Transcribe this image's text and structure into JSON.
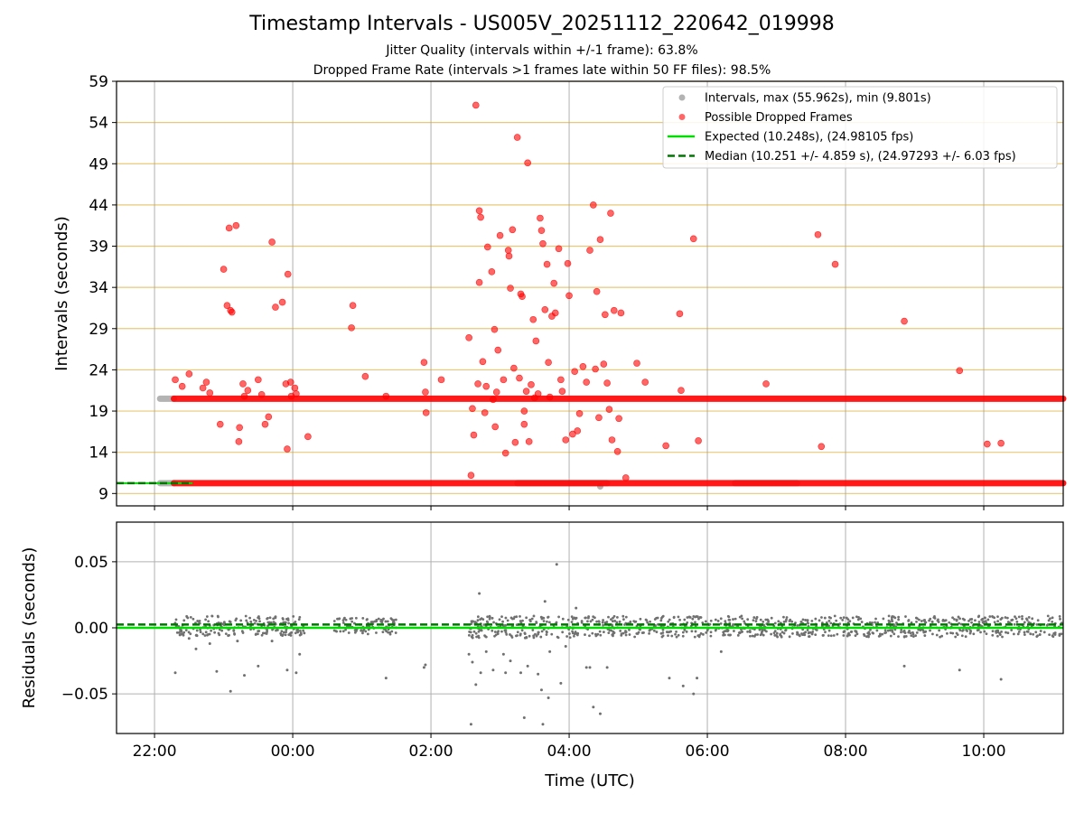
{
  "titles": {
    "title": "Timestamp Intervals - US005V_20251112_220642_019998",
    "subtitle1": "Jitter Quality (intervals within +/-1 frame): 63.8%",
    "subtitle2": "Dropped Frame Rate (intervals >1 frames late within 50 FF files): 98.5%"
  },
  "chart_data": [
    {
      "type": "scatter",
      "panel": "intervals",
      "ylabel": "Intervals (seconds)",
      "xlabel": "",
      "x_unit": "hours relative to 00:00 UTC",
      "xlim": [
        -2.55,
        11.15
      ],
      "ylim": [
        7.5,
        59
      ],
      "yticks": [
        9,
        14,
        19,
        24,
        29,
        34,
        39,
        44,
        49,
        54,
        59
      ],
      "ytick_labels": [
        "9",
        "14",
        "19",
        "24",
        "29",
        "34",
        "39",
        "44",
        "49",
        "54",
        "59"
      ],
      "grid": "horizontal goldenrod lines at y ticks, vertical gray lines at x ticks",
      "legend_position": "top-right",
      "legend": [
        {
          "label": "Intervals, max (55.962s), min (9.801s)",
          "marker": "circle",
          "color": "#808080"
        },
        {
          "label": "Possible Dropped Frames",
          "marker": "circle",
          "color": "#ff0000"
        },
        {
          "label": "Expected (10.248s), (24.98105 fps)",
          "marker": "solid-line",
          "color": "#00dd00"
        },
        {
          "label": "Median (10.251 +/- 4.859 s), (24.97293 +/- 6.03 fps)",
          "marker": "dashed-line",
          "color": "#007700"
        }
      ],
      "expected_value": 10.248,
      "median_value": 10.251,
      "reference_line_xlim": [
        -2.55,
        -1.45
      ],
      "gray_band_segments": [
        {
          "x": [
            -1.92,
            -1.72
          ],
          "y": 20.5
        },
        {
          "x": [
            -1.92,
            -1.72
          ],
          "y": 10.25
        },
        {
          "x": [
            3.25,
            4.55
          ],
          "y": 10.25
        },
        {
          "x": [
            6.4,
            7.3
          ],
          "y": 10.25
        }
      ],
      "red_band_segments": [
        {
          "x": [
            -1.72,
            11.15
          ],
          "y": 20.5
        },
        {
          "x": [
            -1.72,
            11.15
          ],
          "y": 10.25
        }
      ],
      "gray_points": [
        [
          4.45,
          9.85
        ]
      ],
      "red_points": [
        [
          -1.7,
          22.8
        ],
        [
          -1.6,
          22.0
        ],
        [
          -1.5,
          23.5
        ],
        [
          -1.3,
          21.8
        ],
        [
          -1.25,
          22.5
        ],
        [
          -1.2,
          21.2
        ],
        [
          -1.05,
          17.4
        ],
        [
          -1.0,
          36.2
        ],
        [
          -0.95,
          31.8
        ],
        [
          -0.92,
          41.2
        ],
        [
          -0.9,
          31.2
        ],
        [
          -0.88,
          31.0
        ],
        [
          -0.82,
          41.5
        ],
        [
          -0.78,
          15.3
        ],
        [
          -0.77,
          17.0
        ],
        [
          -0.72,
          22.3
        ],
        [
          -0.7,
          20.8
        ],
        [
          -0.65,
          21.5
        ],
        [
          -0.5,
          22.8
        ],
        [
          -0.45,
          21.0
        ],
        [
          -0.4,
          17.4
        ],
        [
          -0.35,
          18.3
        ],
        [
          -0.3,
          39.5
        ],
        [
          -0.25,
          31.6
        ],
        [
          -0.15,
          32.2
        ],
        [
          -0.1,
          22.3
        ],
        [
          -0.08,
          14.4
        ],
        [
          -0.07,
          35.6
        ],
        [
          -0.03,
          22.5
        ],
        [
          -0.02,
          20.8
        ],
        [
          0.03,
          21.8
        ],
        [
          0.05,
          21.1
        ],
        [
          0.22,
          15.9
        ],
        [
          0.85,
          29.1
        ],
        [
          0.87,
          31.8
        ],
        [
          1.05,
          23.2
        ],
        [
          1.35,
          20.8
        ],
        [
          1.9,
          24.9
        ],
        [
          1.92,
          21.3
        ],
        [
          1.93,
          18.8
        ],
        [
          2.15,
          22.8
        ],
        [
          2.55,
          27.9
        ],
        [
          2.58,
          11.2
        ],
        [
          2.6,
          19.3
        ],
        [
          2.62,
          16.1
        ],
        [
          2.65,
          56.1
        ],
        [
          2.68,
          22.3
        ],
        [
          2.7,
          34.6
        ],
        [
          2.7,
          43.3
        ],
        [
          2.72,
          42.5
        ],
        [
          2.75,
          25.0
        ],
        [
          2.78,
          18.8
        ],
        [
          2.8,
          22.0
        ],
        [
          2.82,
          38.9
        ],
        [
          2.88,
          35.9
        ],
        [
          2.9,
          20.4
        ],
        [
          2.92,
          28.9
        ],
        [
          2.93,
          17.1
        ],
        [
          2.95,
          21.3
        ],
        [
          2.97,
          26.4
        ],
        [
          3.0,
          40.3
        ],
        [
          3.05,
          22.8
        ],
        [
          3.08,
          13.9
        ],
        [
          3.12,
          38.5
        ],
        [
          3.13,
          37.8
        ],
        [
          3.15,
          33.9
        ],
        [
          3.18,
          41.0
        ],
        [
          3.2,
          24.2
        ],
        [
          3.22,
          15.2
        ],
        [
          3.25,
          52.2
        ],
        [
          3.28,
          23.0
        ],
        [
          3.3,
          33.2
        ],
        [
          3.32,
          32.9
        ],
        [
          3.35,
          19.0
        ],
        [
          3.35,
          17.4
        ],
        [
          3.38,
          21.4
        ],
        [
          3.4,
          49.1
        ],
        [
          3.42,
          15.3
        ],
        [
          3.45,
          22.2
        ],
        [
          3.48,
          30.1
        ],
        [
          3.5,
          20.6
        ],
        [
          3.52,
          27.5
        ],
        [
          3.55,
          21.1
        ],
        [
          3.58,
          42.4
        ],
        [
          3.6,
          40.9
        ],
        [
          3.62,
          39.3
        ],
        [
          3.65,
          31.3
        ],
        [
          3.68,
          36.8
        ],
        [
          3.7,
          24.9
        ],
        [
          3.72,
          20.7
        ],
        [
          3.75,
          30.5
        ],
        [
          3.78,
          34.5
        ],
        [
          3.8,
          30.9
        ],
        [
          3.85,
          38.7
        ],
        [
          3.88,
          22.8
        ],
        [
          3.9,
          21.4
        ],
        [
          3.95,
          15.5
        ],
        [
          3.98,
          36.9
        ],
        [
          4.0,
          33.0
        ],
        [
          4.05,
          16.2
        ],
        [
          4.08,
          23.8
        ],
        [
          4.12,
          16.6
        ],
        [
          4.15,
          18.7
        ],
        [
          4.2,
          24.4
        ],
        [
          4.25,
          22.5
        ],
        [
          4.3,
          38.5
        ],
        [
          4.35,
          44.0
        ],
        [
          4.38,
          24.1
        ],
        [
          4.4,
          33.5
        ],
        [
          4.43,
          18.2
        ],
        [
          4.45,
          39.8
        ],
        [
          4.5,
          24.7
        ],
        [
          4.52,
          30.7
        ],
        [
          4.55,
          22.4
        ],
        [
          4.58,
          19.2
        ],
        [
          4.6,
          43.0
        ],
        [
          4.62,
          15.5
        ],
        [
          4.65,
          31.2
        ],
        [
          4.7,
          14.1
        ],
        [
          4.72,
          18.1
        ],
        [
          4.75,
          30.9
        ],
        [
          4.82,
          10.9
        ],
        [
          4.98,
          24.8
        ],
        [
          5.1,
          22.5
        ],
        [
          5.4,
          14.8
        ],
        [
          5.6,
          30.8
        ],
        [
          5.62,
          21.5
        ],
        [
          5.8,
          39.9
        ],
        [
          5.87,
          15.4
        ],
        [
          6.85,
          22.3
        ],
        [
          7.6,
          40.4
        ],
        [
          7.65,
          14.7
        ],
        [
          7.85,
          36.8
        ],
        [
          8.85,
          29.9
        ],
        [
          9.65,
          23.9
        ],
        [
          10.05,
          15.0
        ],
        [
          10.25,
          15.1
        ]
      ]
    },
    {
      "type": "scatter",
      "panel": "residuals",
      "ylabel": "Residuals (seconds)",
      "xlabel": "Time (UTC)",
      "x_unit": "hours relative to 00:00 UTC",
      "xlim": [
        -2.55,
        11.15
      ],
      "ylim": [
        -0.08,
        0.08
      ],
      "yticks": [
        -0.05,
        0.0,
        0.05
      ],
      "ytick_labels": [
        "−0.05",
        "0.00",
        "0.05"
      ],
      "xticks": [
        -2,
        0,
        2,
        4,
        6,
        8,
        10
      ],
      "xtick_labels": [
        "22:00",
        "00:00",
        "02:00",
        "04:00",
        "06:00",
        "08:00",
        "10:00"
      ],
      "grid": "gray lines at all ticks",
      "expected_value": 0.0,
      "median_value": 0.0025,
      "noise_bands": [
        {
          "x": [
            -1.72,
            0.2
          ],
          "y": [
            -0.006,
            0.009
          ]
        },
        {
          "x": [
            0.6,
            1.5
          ],
          "y": [
            -0.005,
            0.008
          ]
        },
        {
          "x": [
            2.55,
            4.45
          ],
          "y": [
            -0.008,
            0.009
          ]
        },
        {
          "x": [
            4.45,
            11.15
          ],
          "y": [
            -0.007,
            0.009
          ]
        }
      ],
      "outliers": [
        [
          -1.7,
          -0.034
        ],
        [
          -1.5,
          -0.008
        ],
        [
          -1.4,
          -0.016
        ],
        [
          -1.2,
          -0.012
        ],
        [
          -1.1,
          -0.033
        ],
        [
          -0.9,
          -0.048
        ],
        [
          -0.8,
          -0.01
        ],
        [
          -0.7,
          -0.036
        ],
        [
          -0.5,
          -0.029
        ],
        [
          -0.3,
          -0.01
        ],
        [
          -0.08,
          -0.032
        ],
        [
          0.05,
          -0.034
        ],
        [
          0.1,
          -0.02
        ],
        [
          1.35,
          -0.038
        ],
        [
          1.9,
          -0.03
        ],
        [
          1.92,
          -0.028
        ],
        [
          2.55,
          -0.02
        ],
        [
          2.58,
          -0.073
        ],
        [
          2.6,
          -0.026
        ],
        [
          2.65,
          -0.043
        ],
        [
          2.7,
          0.026
        ],
        [
          2.72,
          -0.034
        ],
        [
          2.8,
          -0.018
        ],
        [
          2.9,
          -0.032
        ],
        [
          3.05,
          -0.02
        ],
        [
          3.08,
          -0.034
        ],
        [
          3.15,
          -0.025
        ],
        [
          3.3,
          -0.034
        ],
        [
          3.35,
          -0.068
        ],
        [
          3.4,
          -0.029
        ],
        [
          3.55,
          -0.035
        ],
        [
          3.6,
          -0.047
        ],
        [
          3.62,
          -0.073
        ],
        [
          3.65,
          0.02
        ],
        [
          3.7,
          -0.053
        ],
        [
          3.72,
          -0.018
        ],
        [
          3.82,
          0.048
        ],
        [
          3.88,
          -0.042
        ],
        [
          3.95,
          -0.014
        ],
        [
          4.1,
          0.015
        ],
        [
          4.25,
          -0.03
        ],
        [
          4.3,
          -0.03
        ],
        [
          4.35,
          -0.06
        ],
        [
          4.45,
          -0.065
        ],
        [
          4.55,
          -0.03
        ],
        [
          5.45,
          -0.038
        ],
        [
          5.65,
          -0.044
        ],
        [
          5.8,
          -0.05
        ],
        [
          5.85,
          -0.038
        ],
        [
          6.2,
          -0.018
        ],
        [
          8.85,
          -0.029
        ],
        [
          9.65,
          -0.032
        ],
        [
          10.25,
          -0.039
        ]
      ]
    }
  ]
}
